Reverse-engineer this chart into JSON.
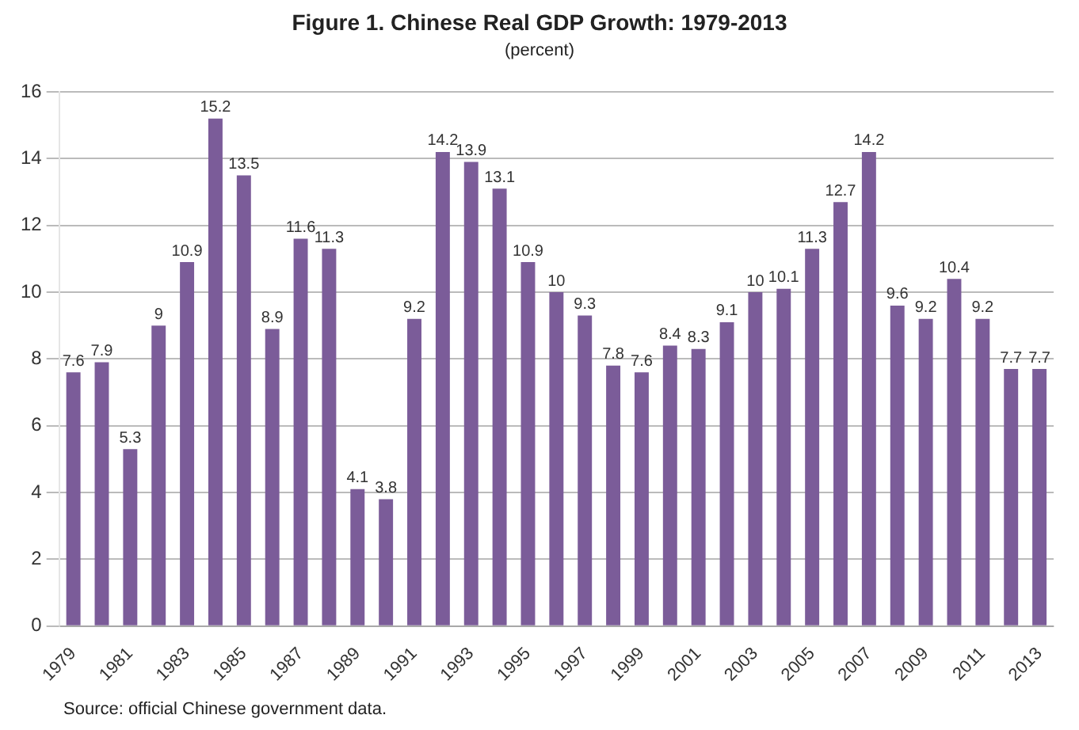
{
  "chart_data": {
    "type": "bar",
    "title": "Figure 1. Chinese Real GDP Growth: 1979-2013",
    "subtitle": "(percent)",
    "categories": [
      "1979",
      null,
      "1981",
      null,
      "1983",
      null,
      "1985",
      null,
      "1987",
      null,
      "1989",
      null,
      "1991",
      null,
      "1993",
      null,
      "1995",
      null,
      "1997",
      null,
      "1999",
      null,
      "2001",
      null,
      "2003",
      null,
      "2005",
      null,
      "2007",
      null,
      "2009",
      null,
      "2011",
      null,
      "2013"
    ],
    "values": [
      7.6,
      7.9,
      5.3,
      9,
      10.9,
      15.2,
      13.5,
      8.9,
      11.6,
      11.3,
      4.1,
      3.8,
      9.2,
      14.2,
      13.9,
      13.1,
      10.9,
      10,
      9.3,
      7.8,
      7.6,
      8.4,
      8.3,
      9.1,
      10,
      10.1,
      11.3,
      12.7,
      14.2,
      9.6,
      9.2,
      10.4,
      9.2,
      7.7,
      7.7
    ],
    "color": "#7b5c99",
    "ylim": [
      0,
      16
    ],
    "yticks": [
      0,
      2,
      4,
      6,
      8,
      10,
      12,
      14,
      16
    ],
    "grid": "y",
    "data_labels": true,
    "annotations": [
      "Source: official Chinese government data."
    ]
  }
}
